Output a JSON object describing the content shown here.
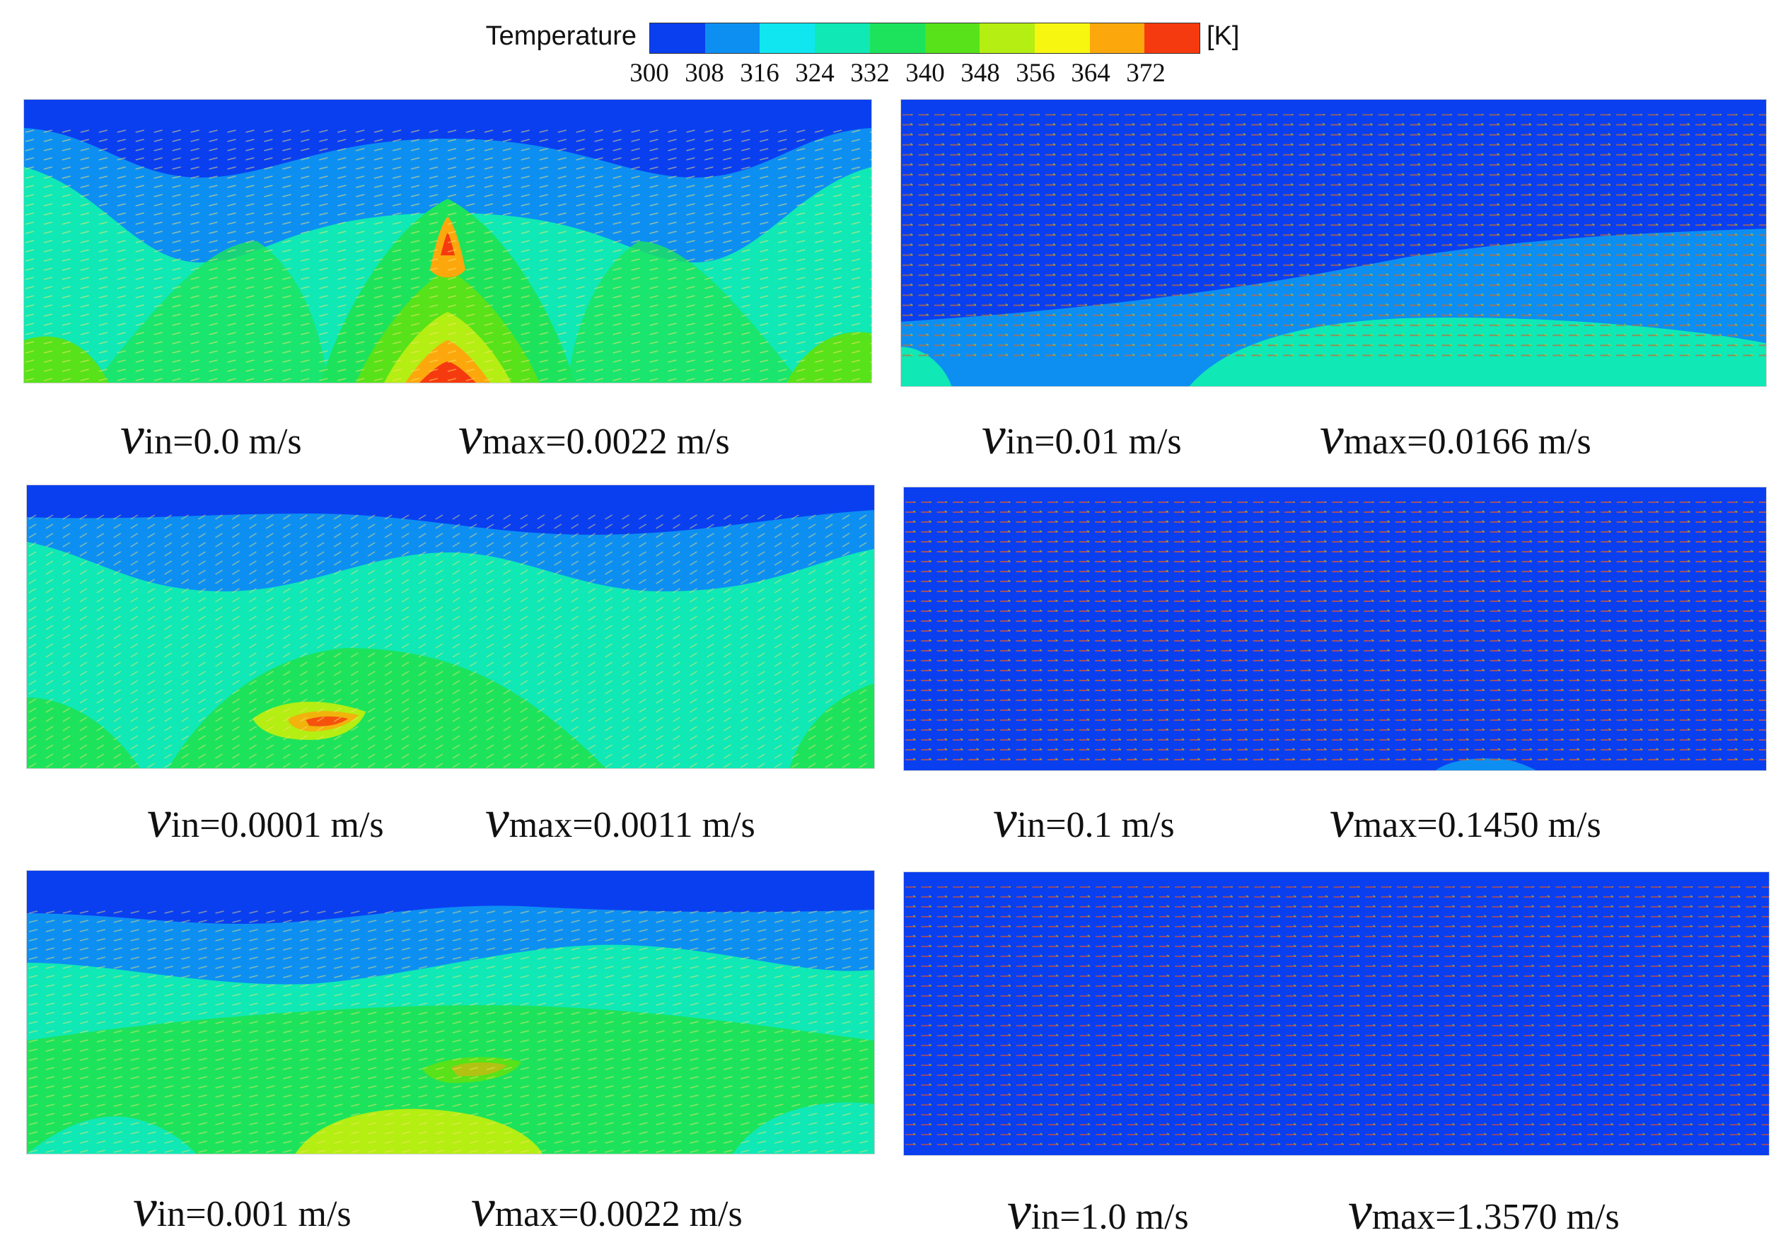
{
  "colorbar": {
    "title": "Temperature",
    "unit": "[K]",
    "ticks": [
      "300",
      "308",
      "316",
      "324",
      "332",
      "340",
      "348",
      "356",
      "364",
      "372"
    ],
    "colors": [
      "#0a3ff0",
      "#0d8ff2",
      "#10e6f0",
      "#10e8b6",
      "#1de35c",
      "#57e21a",
      "#b4ee13",
      "#f6f611",
      "#fca80c",
      "#f63a0f"
    ]
  },
  "panels": [
    {
      "vin_symbol": "v",
      "vin_sub": "in",
      "vin_value": "=0.0 m/s",
      "vmax_symbol": "v",
      "vmax_sub": "max",
      "vmax_value": "=0.0022 m/s"
    },
    {
      "vin_symbol": "v",
      "vin_sub": "in",
      "vin_value": "=0.01 m/s",
      "vmax_symbol": "v",
      "vmax_sub": "max",
      "vmax_value": "=0.0166 m/s"
    },
    {
      "vin_symbol": "v",
      "vin_sub": "in",
      "vin_value": "=0.0001 m/s",
      "vmax_symbol": "v",
      "vmax_sub": "max",
      "vmax_value": "=0.0011 m/s"
    },
    {
      "vin_symbol": "v",
      "vin_sub": "in",
      "vin_value": "=0.1 m/s",
      "vmax_symbol": "v",
      "vmax_sub": "max",
      "vmax_value": "=0.1450 m/s"
    },
    {
      "vin_symbol": "v",
      "vin_sub": "in",
      "vin_value": "=0.001 m/s",
      "vmax_symbol": "v",
      "vmax_sub": "max",
      "vmax_value": "=0.0022 m/s"
    },
    {
      "vin_symbol": "v",
      "vin_sub": "in",
      "vin_value": "=1.0 m/s",
      "vmax_symbol": "v",
      "vmax_sub": "max",
      "vmax_value": "=1.3570 m/s"
    }
  ]
}
